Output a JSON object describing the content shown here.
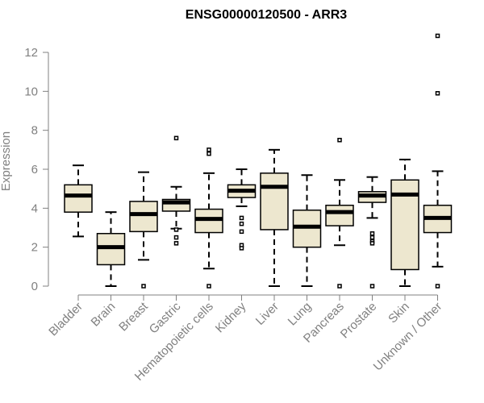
{
  "chart_data": {
    "type": "box",
    "title": "ENSG00000120500 - ARR3",
    "xlabel": "",
    "ylabel": "Expression",
    "ylim": [
      0,
      12
    ],
    "yticks": [
      0,
      2,
      4,
      6,
      8,
      10,
      12
    ],
    "grid": false,
    "colors": {
      "box_fill": "#ede7cf",
      "box_stroke": "#000000",
      "axis": "#808080"
    },
    "categories": [
      "Bladder",
      "Brain",
      "Breast",
      "Gastric",
      "Hematopoietic cells",
      "Kidney",
      "Liver",
      "Lung",
      "Pancreas",
      "Prostate",
      "Skin",
      "Unknown / Other"
    ],
    "boxes": [
      {
        "whisker_low": 2.55,
        "q1": 3.8,
        "median": 4.65,
        "q3": 5.2,
        "whisker_high": 6.2,
        "outliers": []
      },
      {
        "whisker_low": 0.0,
        "q1": 1.1,
        "median": 2.0,
        "q3": 2.7,
        "whisker_high": 3.8,
        "outliers": []
      },
      {
        "whisker_low": 1.35,
        "q1": 2.8,
        "median": 3.7,
        "q3": 4.35,
        "whisker_high": 5.85,
        "outliers": [
          0.0
        ]
      },
      {
        "whisker_low": 2.95,
        "q1": 3.85,
        "median": 4.3,
        "q3": 4.45,
        "whisker_high": 5.1,
        "outliers": [
          7.6,
          2.5,
          2.2,
          2.9
        ]
      },
      {
        "whisker_low": 0.9,
        "q1": 2.75,
        "median": 3.45,
        "q3": 3.95,
        "whisker_high": 5.8,
        "outliers": [
          6.8,
          7.0,
          0.0
        ]
      },
      {
        "whisker_low": 4.1,
        "q1": 4.55,
        "median": 4.9,
        "q3": 5.2,
        "whisker_high": 6.0,
        "outliers": [
          3.5,
          3.2,
          2.8,
          2.1,
          1.95
        ]
      },
      {
        "whisker_low": 0.0,
        "q1": 2.9,
        "median": 5.1,
        "q3": 5.8,
        "whisker_high": 7.0,
        "outliers": []
      },
      {
        "whisker_low": 0.0,
        "q1": 2.0,
        "median": 3.05,
        "q3": 3.9,
        "whisker_high": 5.7,
        "outliers": []
      },
      {
        "whisker_low": 2.1,
        "q1": 3.1,
        "median": 3.8,
        "q3": 4.15,
        "whisker_high": 5.45,
        "outliers": [
          7.5,
          0.0
        ]
      },
      {
        "whisker_low": 3.5,
        "q1": 4.3,
        "median": 4.65,
        "q3": 4.85,
        "whisker_high": 5.6,
        "outliers": [
          2.7,
          2.5,
          2.3,
          2.2,
          0.0
        ]
      },
      {
        "whisker_low": 0.0,
        "q1": 0.85,
        "median": 4.7,
        "q3": 5.45,
        "whisker_high": 6.5,
        "outliers": []
      },
      {
        "whisker_low": 1.0,
        "q1": 2.75,
        "median": 3.5,
        "q3": 4.15,
        "whisker_high": 5.9,
        "outliers": [
          12.85,
          9.9,
          0.0
        ]
      }
    ]
  }
}
